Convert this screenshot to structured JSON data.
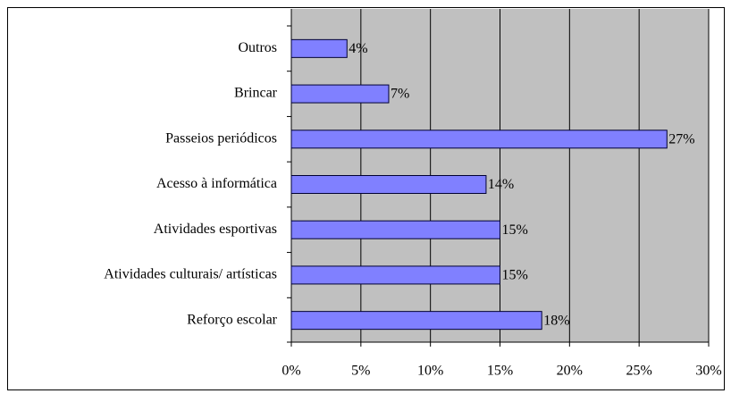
{
  "chart_data": {
    "type": "bar",
    "orientation": "horizontal",
    "categories": [
      "Outros",
      "Brincar",
      "Passeios periódicos",
      "Acesso à informática",
      "Atividades esportivas",
      "Atividades culturais/ artísticas",
      "Reforço escolar"
    ],
    "values": [
      4,
      7,
      27,
      14,
      15,
      15,
      18
    ],
    "value_labels": [
      "4%",
      "7%",
      "27%",
      "14%",
      "15%",
      "15%",
      "18%"
    ],
    "color": "#8080ff",
    "xlim": [
      0,
      30
    ],
    "xticks": [
      {
        "value": 0,
        "label": "0%"
      },
      {
        "value": 5,
        "label": "5%"
      },
      {
        "value": 10,
        "label": "10%"
      },
      {
        "value": 15,
        "label": "15%"
      },
      {
        "value": 20,
        "label": "20%"
      },
      {
        "value": 25,
        "label": "25%"
      },
      {
        "value": 30,
        "label": "30%"
      }
    ],
    "grid": true
  }
}
